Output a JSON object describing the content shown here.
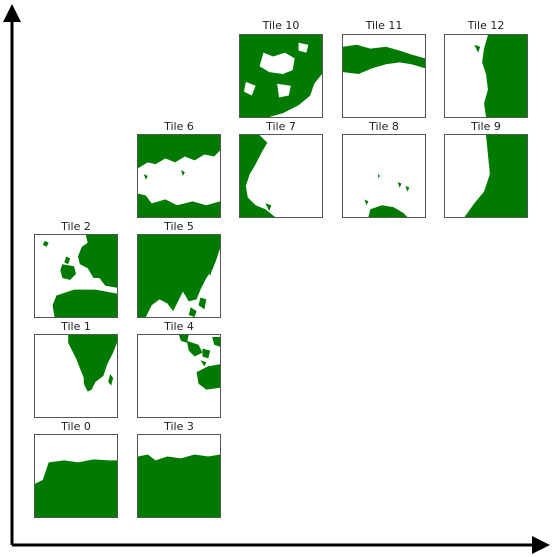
{
  "tiles": [
    {
      "id": 0,
      "title": "Tile 0",
      "land_color": "#007a00"
    },
    {
      "id": 1,
      "title": "Tile 1",
      "land_color": "#007a00"
    },
    {
      "id": 2,
      "title": "Tile 2",
      "land_color": "#007a00"
    },
    {
      "id": 3,
      "title": "Tile 3",
      "land_color": "#007a00"
    },
    {
      "id": 4,
      "title": "Tile 4",
      "land_color": "#007a00"
    },
    {
      "id": 5,
      "title": "Tile 5",
      "land_color": "#007a00"
    },
    {
      "id": 6,
      "title": "Tile 6",
      "land_color": "#007a00"
    },
    {
      "id": 7,
      "title": "Tile 7",
      "land_color": "#007a00"
    },
    {
      "id": 8,
      "title": "Tile 8",
      "land_color": "#007a00"
    },
    {
      "id": 9,
      "title": "Tile 9",
      "land_color": "#007a00"
    },
    {
      "id": 10,
      "title": "Tile 10",
      "land_color": "#007a00"
    },
    {
      "id": 11,
      "title": "Tile 11",
      "land_color": "#007a00"
    },
    {
      "id": 12,
      "title": "Tile 12",
      "land_color": "#007a00"
    }
  ],
  "colors": {
    "land": "#007a00",
    "ocean": "#ffffff",
    "axis": "#000000",
    "border": "#555555"
  }
}
